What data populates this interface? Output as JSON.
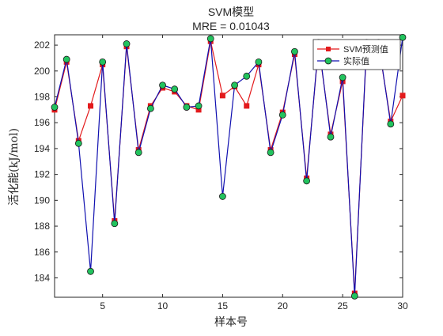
{
  "chart_data": {
    "type": "line",
    "title_line1": "SVM模型",
    "title_line2": "MRE = 0.01043",
    "xlabel": "样本号",
    "ylabel": "活化能(kJ/mol)",
    "xlim": [
      1,
      30
    ],
    "ylim": [
      182.5,
      202.8
    ],
    "xticks": [
      5,
      10,
      15,
      20,
      25,
      30
    ],
    "yticks": [
      184,
      186,
      188,
      190,
      192,
      194,
      196,
      198,
      200,
      202
    ],
    "grid": false,
    "legend_position": "top-right",
    "x": [
      1,
      2,
      3,
      4,
      5,
      6,
      7,
      8,
      9,
      10,
      11,
      12,
      13,
      14,
      15,
      16,
      17,
      18,
      19,
      20,
      21,
      22,
      23,
      24,
      25,
      26,
      27,
      28,
      29,
      30
    ],
    "series": [
      {
        "name": "SVM预测值",
        "color": "#e31a1c",
        "marker": "square",
        "values": [
          197.0,
          200.7,
          194.6,
          197.3,
          200.5,
          188.4,
          201.9,
          193.9,
          197.3,
          198.7,
          198.4,
          197.3,
          197.0,
          202.3,
          198.1,
          198.8,
          197.3,
          200.5,
          193.9,
          196.8,
          201.3,
          191.7,
          202.0,
          195.1,
          199.2,
          182.8,
          202.0,
          202.0,
          196.1,
          198.1
        ]
      },
      {
        "name": "实际值",
        "color": "#1010b0",
        "marker": "circle",
        "marker_fill": "#22c35e",
        "values": [
          197.2,
          200.9,
          194.4,
          184.5,
          200.7,
          188.2,
          202.1,
          193.7,
          197.1,
          198.9,
          198.6,
          197.2,
          197.3,
          202.5,
          190.3,
          198.9,
          199.6,
          200.7,
          193.7,
          196.6,
          201.5,
          191.5,
          202.2,
          194.9,
          199.5,
          182.6,
          202.2,
          202.2,
          195.9,
          202.6
        ]
      }
    ]
  }
}
